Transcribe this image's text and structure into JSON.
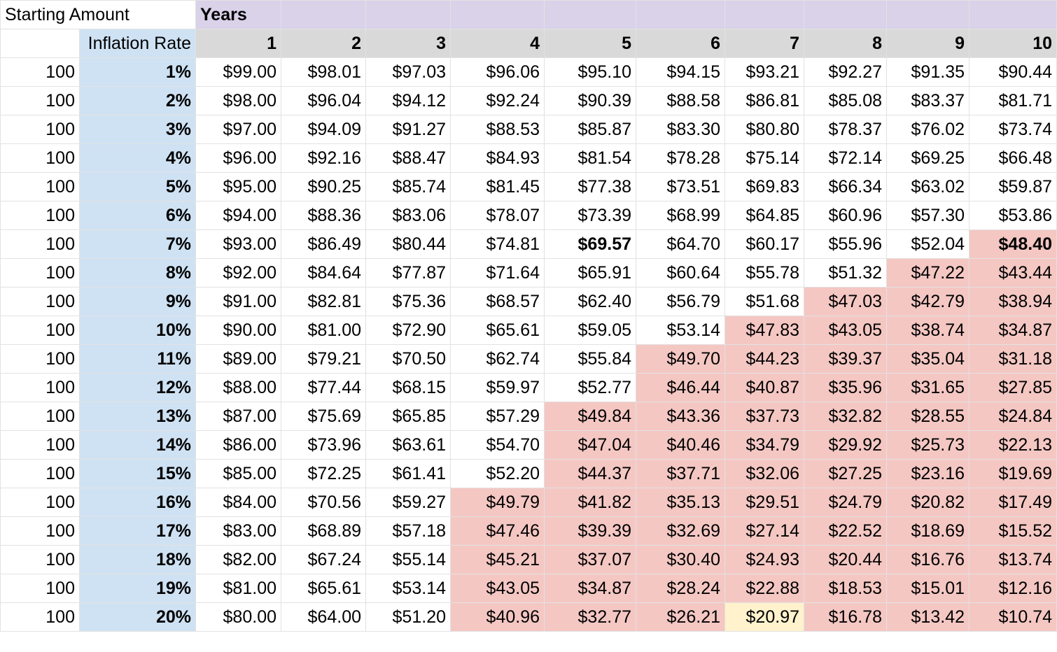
{
  "labels": {
    "starting_amount": "Starting Amount",
    "years": "Years",
    "inflation_rate": "Inflation Rate"
  },
  "colors": {
    "years_header": "#d9d2e9",
    "column_header": "#d9d9d9",
    "rate_column": "#cfe2f3",
    "below_half": "#f4c7c3",
    "highlight": "#fff2cc"
  },
  "year_headers": [
    "1",
    "2",
    "3",
    "4",
    "5",
    "6",
    "7",
    "8",
    "9",
    "10"
  ],
  "rows": [
    {
      "amount": "100",
      "rate": "1%",
      "values": [
        "$99.00",
        "$98.01",
        "$97.03",
        "$96.06",
        "$95.10",
        "$94.15",
        "$93.21",
        "$92.27",
        "$91.35",
        "$90.44"
      ],
      "red_from": 11,
      "bold": [],
      "yellow": []
    },
    {
      "amount": "100",
      "rate": "2%",
      "values": [
        "$98.00",
        "$96.04",
        "$94.12",
        "$92.24",
        "$90.39",
        "$88.58",
        "$86.81",
        "$85.08",
        "$83.37",
        "$81.71"
      ],
      "red_from": 11,
      "bold": [],
      "yellow": []
    },
    {
      "amount": "100",
      "rate": "3%",
      "values": [
        "$97.00",
        "$94.09",
        "$91.27",
        "$88.53",
        "$85.87",
        "$83.30",
        "$80.80",
        "$78.37",
        "$76.02",
        "$73.74"
      ],
      "red_from": 11,
      "bold": [],
      "yellow": []
    },
    {
      "amount": "100",
      "rate": "4%",
      "values": [
        "$96.00",
        "$92.16",
        "$88.47",
        "$84.93",
        "$81.54",
        "$78.28",
        "$75.14",
        "$72.14",
        "$69.25",
        "$66.48"
      ],
      "red_from": 11,
      "bold": [],
      "yellow": []
    },
    {
      "amount": "100",
      "rate": "5%",
      "values": [
        "$95.00",
        "$90.25",
        "$85.74",
        "$81.45",
        "$77.38",
        "$73.51",
        "$69.83",
        "$66.34",
        "$63.02",
        "$59.87"
      ],
      "red_from": 11,
      "bold": [],
      "yellow": []
    },
    {
      "amount": "100",
      "rate": "6%",
      "values": [
        "$94.00",
        "$88.36",
        "$83.06",
        "$78.07",
        "$73.39",
        "$68.99",
        "$64.85",
        "$60.96",
        "$57.30",
        "$53.86"
      ],
      "red_from": 11,
      "bold": [],
      "yellow": []
    },
    {
      "amount": "100",
      "rate": "7%",
      "values": [
        "$93.00",
        "$86.49",
        "$80.44",
        "$74.81",
        "$69.57",
        "$64.70",
        "$60.17",
        "$55.96",
        "$52.04",
        "$48.40"
      ],
      "red_from": 10,
      "bold": [
        5,
        10
      ],
      "yellow": []
    },
    {
      "amount": "100",
      "rate": "8%",
      "values": [
        "$92.00",
        "$84.64",
        "$77.87",
        "$71.64",
        "$65.91",
        "$60.64",
        "$55.78",
        "$51.32",
        "$47.22",
        "$43.44"
      ],
      "red_from": 9,
      "bold": [],
      "yellow": []
    },
    {
      "amount": "100",
      "rate": "9%",
      "values": [
        "$91.00",
        "$82.81",
        "$75.36",
        "$68.57",
        "$62.40",
        "$56.79",
        "$51.68",
        "$47.03",
        "$42.79",
        "$38.94"
      ],
      "red_from": 8,
      "bold": [],
      "yellow": []
    },
    {
      "amount": "100",
      "rate": "10%",
      "values": [
        "$90.00",
        "$81.00",
        "$72.90",
        "$65.61",
        "$59.05",
        "$53.14",
        "$47.83",
        "$43.05",
        "$38.74",
        "$34.87"
      ],
      "red_from": 7,
      "bold": [],
      "yellow": []
    },
    {
      "amount": "100",
      "rate": "11%",
      "values": [
        "$89.00",
        "$79.21",
        "$70.50",
        "$62.74",
        "$55.84",
        "$49.70",
        "$44.23",
        "$39.37",
        "$35.04",
        "$31.18"
      ],
      "red_from": 6,
      "bold": [],
      "yellow": []
    },
    {
      "amount": "100",
      "rate": "12%",
      "values": [
        "$88.00",
        "$77.44",
        "$68.15",
        "$59.97",
        "$52.77",
        "$46.44",
        "$40.87",
        "$35.96",
        "$31.65",
        "$27.85"
      ],
      "red_from": 6,
      "bold": [],
      "yellow": []
    },
    {
      "amount": "100",
      "rate": "13%",
      "values": [
        "$87.00",
        "$75.69",
        "$65.85",
        "$57.29",
        "$49.84",
        "$43.36",
        "$37.73",
        "$32.82",
        "$28.55",
        "$24.84"
      ],
      "red_from": 5,
      "bold": [],
      "yellow": []
    },
    {
      "amount": "100",
      "rate": "14%",
      "values": [
        "$86.00",
        "$73.96",
        "$63.61",
        "$54.70",
        "$47.04",
        "$40.46",
        "$34.79",
        "$29.92",
        "$25.73",
        "$22.13"
      ],
      "red_from": 5,
      "bold": [],
      "yellow": []
    },
    {
      "amount": "100",
      "rate": "15%",
      "values": [
        "$85.00",
        "$72.25",
        "$61.41",
        "$52.20",
        "$44.37",
        "$37.71",
        "$32.06",
        "$27.25",
        "$23.16",
        "$19.69"
      ],
      "red_from": 5,
      "bold": [],
      "yellow": []
    },
    {
      "amount": "100",
      "rate": "16%",
      "values": [
        "$84.00",
        "$70.56",
        "$59.27",
        "$49.79",
        "$41.82",
        "$35.13",
        "$29.51",
        "$24.79",
        "$20.82",
        "$17.49"
      ],
      "red_from": 4,
      "bold": [],
      "yellow": []
    },
    {
      "amount": "100",
      "rate": "17%",
      "values": [
        "$83.00",
        "$68.89",
        "$57.18",
        "$47.46",
        "$39.39",
        "$32.69",
        "$27.14",
        "$22.52",
        "$18.69",
        "$15.52"
      ],
      "red_from": 4,
      "bold": [],
      "yellow": []
    },
    {
      "amount": "100",
      "rate": "18%",
      "values": [
        "$82.00",
        "$67.24",
        "$55.14",
        "$45.21",
        "$37.07",
        "$30.40",
        "$24.93",
        "$20.44",
        "$16.76",
        "$13.74"
      ],
      "red_from": 4,
      "bold": [],
      "yellow": []
    },
    {
      "amount": "100",
      "rate": "19%",
      "values": [
        "$81.00",
        "$65.61",
        "$53.14",
        "$43.05",
        "$34.87",
        "$28.24",
        "$22.88",
        "$18.53",
        "$15.01",
        "$12.16"
      ],
      "red_from": 4,
      "bold": [],
      "yellow": []
    },
    {
      "amount": "100",
      "rate": "20%",
      "values": [
        "$80.00",
        "$64.00",
        "$51.20",
        "$40.96",
        "$32.77",
        "$26.21",
        "$20.97",
        "$16.78",
        "$13.42",
        "$10.74"
      ],
      "red_from": 4,
      "bold": [],
      "yellow": [
        7
      ]
    }
  ]
}
